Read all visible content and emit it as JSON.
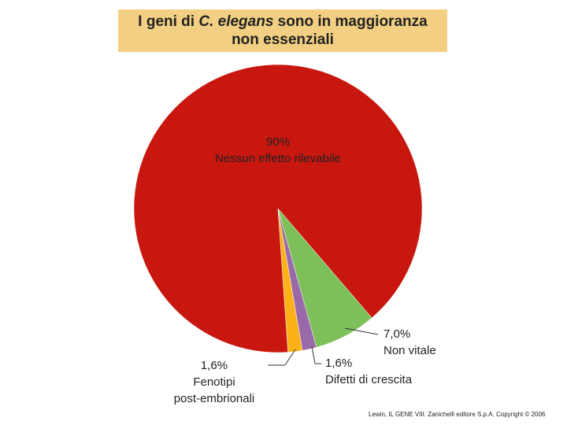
{
  "chart_data": {
    "type": "pie",
    "title_lines": [
      [
        {
          "text": "I geni di ",
          "italic": false
        },
        {
          "text": "C. elegans",
          "italic": true
        },
        {
          "text": " sono in maggioranza",
          "italic": false
        }
      ],
      [
        {
          "text": "non essenziali",
          "italic": false
        }
      ]
    ],
    "categories": [
      "Nessun effetto rilevabile",
      "Non vitale",
      "Difetti di crescita",
      "Fenotipi\npost-embrionali"
    ],
    "values": [
      90,
      7.0,
      1.6,
      1.6
    ],
    "value_labels": [
      "90%",
      "7,0%",
      "1,6%",
      "1,6%"
    ],
    "colors": [
      "#c8170f",
      "#7dc05a",
      "#9a6aa8",
      "#fbb117"
    ],
    "source": "Lewin, IL GENE VIII. Zanichelli editore S.p.A. Copyright © 2006"
  }
}
